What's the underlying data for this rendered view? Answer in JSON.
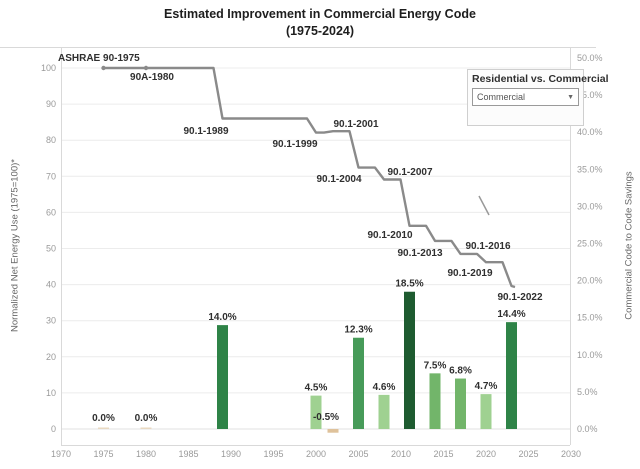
{
  "title": "Estimated Improvement in Commercial Energy Code",
  "subtitle": "(1975-2024)",
  "filter_panel": {
    "title": "Residential vs. Commercial",
    "dropdown_value": "Commercial",
    "dropdown_caret": "▼"
  },
  "left_axis": {
    "title": "Normalized Net Energy Use (1975=100)*",
    "ticks": [
      0,
      10,
      20,
      30,
      40,
      50,
      60,
      70,
      80,
      90,
      100
    ]
  },
  "right_axis": {
    "title": "Commercial Code to Code Savings",
    "ticks": [
      "0.0%",
      "5.0%",
      "10.0%",
      "15.0%",
      "20.0%",
      "25.0%",
      "30.0%",
      "35.0%",
      "40.0%",
      "45.0%",
      "50.0%"
    ],
    "tick_values": [
      0,
      5,
      10,
      15,
      20,
      25,
      30,
      35,
      40,
      45,
      50
    ]
  },
  "x_axis": {
    "ticks": [
      1970,
      1975,
      1980,
      1985,
      1990,
      1995,
      2000,
      2005,
      2010,
      2015,
      2020,
      2025,
      2030
    ]
  },
  "chart_data": [
    {
      "type": "line",
      "name": "Normalized Net Energy Use (step line, left axis)",
      "style": "step",
      "color": "#8a8a8a",
      "axis": "left",
      "ylim": [
        0,
        100
      ],
      "x": [
        1975,
        1980,
        1989,
        1999,
        2001,
        2004,
        2007,
        2010,
        2013,
        2016,
        2019,
        2022
      ],
      "y": [
        100,
        100,
        86.0,
        82.1,
        82.5,
        72.4,
        69.1,
        56.3,
        52.1,
        48.5,
        46.2,
        39.6
      ],
      "point_labels": [
        "ASHRAE 90-1975",
        "90A-1980",
        "90.1-1989",
        "90.1-1999",
        "90.1-2001",
        "90.1-2004",
        "90.1-2007",
        "90.1-2010",
        "90.1-2013",
        "90.1-2016",
        "90.1-2019",
        "90.1-2022"
      ],
      "markers_at": [
        1975,
        1980
      ]
    },
    {
      "type": "bar",
      "name": "Commercial Code to Code Savings (right axis)",
      "axis": "right",
      "ylim": [
        0,
        50
      ],
      "grid": true,
      "categories": [
        1975,
        1980,
        1989,
        1999,
        2001,
        2004,
        2007,
        2010,
        2013,
        2016,
        2019,
        2022
      ],
      "values": [
        0.0,
        0.0,
        14.0,
        4.5,
        -0.5,
        12.3,
        4.6,
        18.5,
        7.5,
        6.8,
        4.7,
        14.4
      ],
      "labels": [
        "0.0%",
        "0.0%",
        "14.0%",
        "4.5%",
        "-0.5%",
        "12.3%",
        "4.6%",
        "18.5%",
        "7.5%",
        "6.8%",
        "4.7%",
        "14.4%"
      ],
      "colors": [
        "#e9d9c1",
        "#e9d9c1",
        "#2e8347",
        "#9fd191",
        "#dfc29b",
        "#479b59",
        "#9fd191",
        "#1e5b30",
        "#72b56a",
        "#72b56a",
        "#9fd191",
        "#2e8347"
      ]
    }
  ],
  "style_colors": {
    "line": "#8a8a8a",
    "annotation_text": "#2f2f2f",
    "tick_text": "#9a9a9a",
    "gridline": "#ececec",
    "border": "#d9d9d9"
  }
}
